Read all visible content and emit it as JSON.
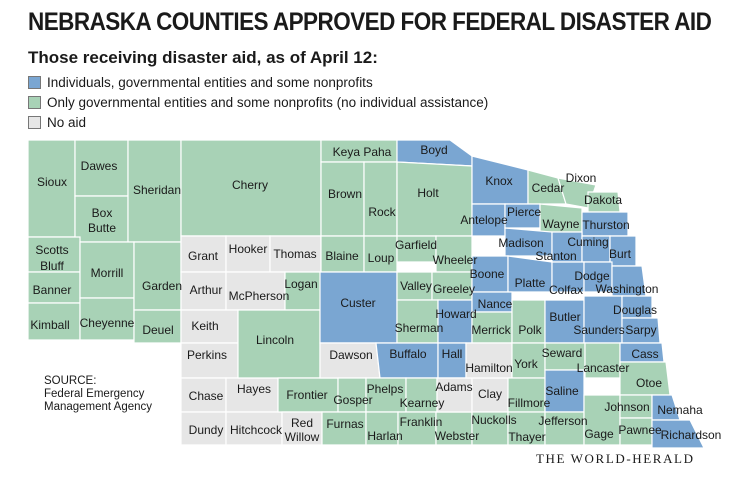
{
  "title": "NEBRASKA COUNTIES APPROVED FOR FEDERAL DISASTER AID",
  "subtitle": "Those receiving disaster aid, as of April 12:",
  "legend": [
    {
      "label": "Individuals, governmental entities and some nonprofits",
      "category": "individuals",
      "color": "#7aa6d2"
    },
    {
      "label": "Only governmental entities and some nonprofits (no individual assistance)",
      "category": "government",
      "color": "#a8d2b6"
    },
    {
      "label": "No aid",
      "category": "none",
      "color": "#e6e6e6"
    }
  ],
  "source": "SOURCE:\nFederal Emergency\nManagement Agency",
  "credit": "THE WORLD-HERALD",
  "counties": [
    {
      "name": "Sioux",
      "aid": "government"
    },
    {
      "name": "Dawes",
      "aid": "government"
    },
    {
      "name": "Box Butte",
      "aid": "government"
    },
    {
      "name": "Sheridan",
      "aid": "government"
    },
    {
      "name": "Cherry",
      "aid": "government"
    },
    {
      "name": "Keya Paha",
      "aid": "government"
    },
    {
      "name": "Boyd",
      "aid": "individuals"
    },
    {
      "name": "Brown",
      "aid": "government"
    },
    {
      "name": "Rock",
      "aid": "government"
    },
    {
      "name": "Holt",
      "aid": "government"
    },
    {
      "name": "Knox",
      "aid": "individuals"
    },
    {
      "name": "Cedar",
      "aid": "government"
    },
    {
      "name": "Dixon",
      "aid": "government"
    },
    {
      "name": "Dakota",
      "aid": "government"
    },
    {
      "name": "Scotts Bluff",
      "aid": "government"
    },
    {
      "name": "Banner",
      "aid": "government"
    },
    {
      "name": "Kimball",
      "aid": "government"
    },
    {
      "name": "Morrill",
      "aid": "government"
    },
    {
      "name": "Cheyenne",
      "aid": "government"
    },
    {
      "name": "Garden",
      "aid": "government"
    },
    {
      "name": "Deuel",
      "aid": "government"
    },
    {
      "name": "Grant",
      "aid": "none"
    },
    {
      "name": "Hooker",
      "aid": "none"
    },
    {
      "name": "Thomas",
      "aid": "none"
    },
    {
      "name": "Arthur",
      "aid": "none"
    },
    {
      "name": "McPherson",
      "aid": "none"
    },
    {
      "name": "Logan",
      "aid": "government"
    },
    {
      "name": "Keith",
      "aid": "none"
    },
    {
      "name": "Perkins",
      "aid": "none"
    },
    {
      "name": "Chase",
      "aid": "none"
    },
    {
      "name": "Dundy",
      "aid": "none"
    },
    {
      "name": "Hayes",
      "aid": "none"
    },
    {
      "name": "Hitchcock",
      "aid": "none"
    },
    {
      "name": "Lincoln",
      "aid": "government"
    },
    {
      "name": "Frontier",
      "aid": "government"
    },
    {
      "name": "Red Willow",
      "aid": "none"
    },
    {
      "name": "Blaine",
      "aid": "government"
    },
    {
      "name": "Loup",
      "aid": "government"
    },
    {
      "name": "Garfield",
      "aid": "government"
    },
    {
      "name": "Wheeler",
      "aid": "government"
    },
    {
      "name": "Custer",
      "aid": "individuals"
    },
    {
      "name": "Valley",
      "aid": "government"
    },
    {
      "name": "Greeley",
      "aid": "government"
    },
    {
      "name": "Sherman",
      "aid": "government"
    },
    {
      "name": "Howard",
      "aid": "individuals"
    },
    {
      "name": "Dawson",
      "aid": "none"
    },
    {
      "name": "Buffalo",
      "aid": "individuals"
    },
    {
      "name": "Hall",
      "aid": "individuals"
    },
    {
      "name": "Gosper",
      "aid": "government"
    },
    {
      "name": "Phelps",
      "aid": "government"
    },
    {
      "name": "Kearney",
      "aid": "government"
    },
    {
      "name": "Furnas",
      "aid": "government"
    },
    {
      "name": "Harlan",
      "aid": "government"
    },
    {
      "name": "Franklin",
      "aid": "government"
    },
    {
      "name": "Webster",
      "aid": "government"
    },
    {
      "name": "Adams",
      "aid": "none"
    },
    {
      "name": "Clay",
      "aid": "none"
    },
    {
      "name": "Nuckolls",
      "aid": "government"
    },
    {
      "name": "Antelope",
      "aid": "individuals"
    },
    {
      "name": "Pierce",
      "aid": "individuals"
    },
    {
      "name": "Wayne",
      "aid": "government"
    },
    {
      "name": "Thurston",
      "aid": "individuals"
    },
    {
      "name": "Madison",
      "aid": "individuals"
    },
    {
      "name": "Stanton",
      "aid": "individuals"
    },
    {
      "name": "Cuming",
      "aid": "individuals"
    },
    {
      "name": "Burt",
      "aid": "individuals"
    },
    {
      "name": "Boone",
      "aid": "individuals"
    },
    {
      "name": "Platte",
      "aid": "individuals"
    },
    {
      "name": "Colfax",
      "aid": "individuals"
    },
    {
      "name": "Dodge",
      "aid": "individuals"
    },
    {
      "name": "Washington",
      "aid": "individuals"
    },
    {
      "name": "Nance",
      "aid": "individuals"
    },
    {
      "name": "Merrick",
      "aid": "government"
    },
    {
      "name": "Polk",
      "aid": "government"
    },
    {
      "name": "Butler",
      "aid": "individuals"
    },
    {
      "name": "Saunders",
      "aid": "individuals"
    },
    {
      "name": "Douglas",
      "aid": "individuals"
    },
    {
      "name": "Sarpy",
      "aid": "individuals"
    },
    {
      "name": "Hamilton",
      "aid": "none"
    },
    {
      "name": "York",
      "aid": "government"
    },
    {
      "name": "Seward",
      "aid": "government"
    },
    {
      "name": "Lancaster",
      "aid": "government"
    },
    {
      "name": "Cass",
      "aid": "individuals"
    },
    {
      "name": "Fillmore",
      "aid": "government"
    },
    {
      "name": "Saline",
      "aid": "individuals"
    },
    {
      "name": "Otoe",
      "aid": "government"
    },
    {
      "name": "Thayer",
      "aid": "government"
    },
    {
      "name": "Jefferson",
      "aid": "government"
    },
    {
      "name": "Gage",
      "aid": "government"
    },
    {
      "name": "Johnson",
      "aid": "government"
    },
    {
      "name": "Nemaha",
      "aid": "individuals"
    },
    {
      "name": "Pawnee",
      "aid": "government"
    },
    {
      "name": "Richardson",
      "aid": "individuals"
    }
  ]
}
